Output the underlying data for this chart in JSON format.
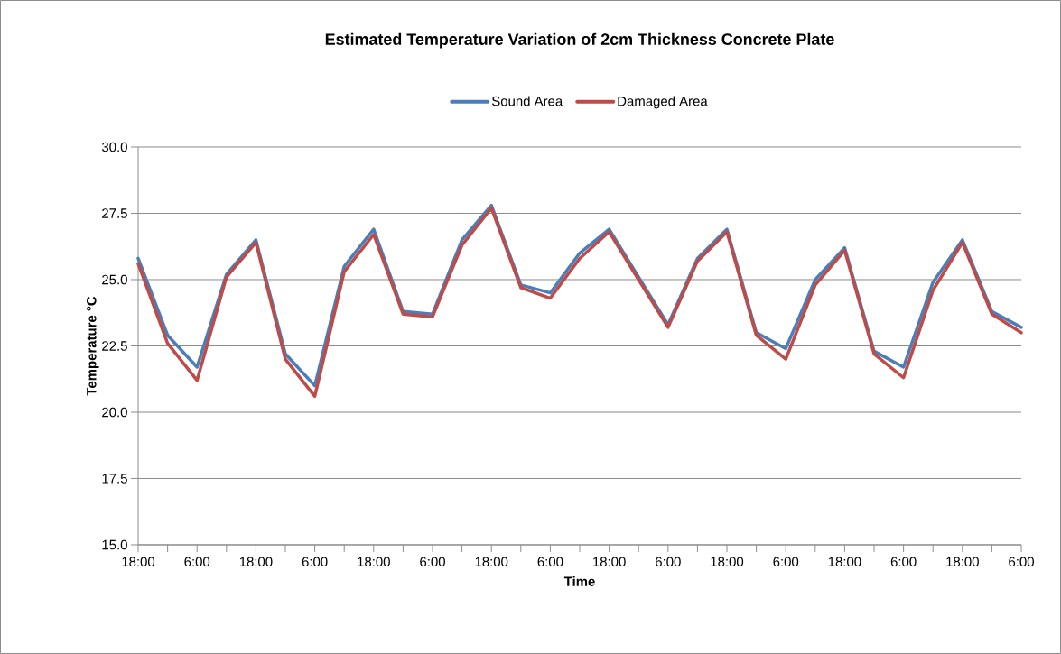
{
  "chart_data": {
    "type": "line",
    "title": "Estimated Temperature Variation of 2cm Thickness Concrete Plate",
    "xlabel": "Time",
    "ylabel": "Temperature °C",
    "categories": [
      "18:00",
      null,
      "6:00",
      null,
      "18:00",
      null,
      "6:00",
      null,
      "18:00",
      null,
      "6:00",
      null,
      "18:00",
      null,
      "6:00",
      null,
      "18:00",
      null,
      "6:00",
      null,
      "18:00",
      null,
      "6:00",
      null,
      "18:00",
      null,
      "6:00",
      null,
      "18:00",
      null,
      "6:00"
    ],
    "series": [
      {
        "name": "Sound Area",
        "color": "#4a7ebb",
        "values": [
          25.8,
          22.9,
          21.7,
          25.2,
          26.5,
          22.2,
          21.0,
          25.5,
          26.9,
          23.8,
          23.7,
          26.5,
          27.8,
          24.8,
          24.5,
          26.0,
          26.9,
          25.1,
          23.3,
          25.8,
          26.9,
          23.0,
          22.4,
          25.0,
          26.2,
          22.3,
          21.7,
          24.9,
          26.5,
          23.8,
          23.2
        ]
      },
      {
        "name": "Damaged Area",
        "color": "#be4b48",
        "values": [
          25.6,
          22.6,
          21.2,
          25.1,
          26.4,
          22.0,
          20.6,
          25.3,
          26.7,
          23.7,
          23.6,
          26.3,
          27.7,
          24.7,
          24.3,
          25.8,
          26.8,
          25.0,
          23.2,
          25.7,
          26.8,
          22.9,
          22.0,
          24.8,
          26.1,
          22.2,
          21.3,
          24.6,
          26.4,
          23.7,
          23.0
        ]
      }
    ],
    "ylim": [
      15,
      30
    ],
    "yticks": [
      {
        "value": 15,
        "label": "15.0"
      },
      {
        "value": 17.5,
        "label": "17.5"
      },
      {
        "value": 20,
        "label": "20.0"
      },
      {
        "value": 22.5,
        "label": "22.5"
      },
      {
        "value": 25,
        "label": "25.0"
      },
      {
        "value": 27.5,
        "label": "27.5"
      },
      {
        "value": 30,
        "label": "30.0"
      }
    ],
    "grid": "y",
    "legend": "top",
    "marker": "none",
    "line_style": "solid"
  }
}
